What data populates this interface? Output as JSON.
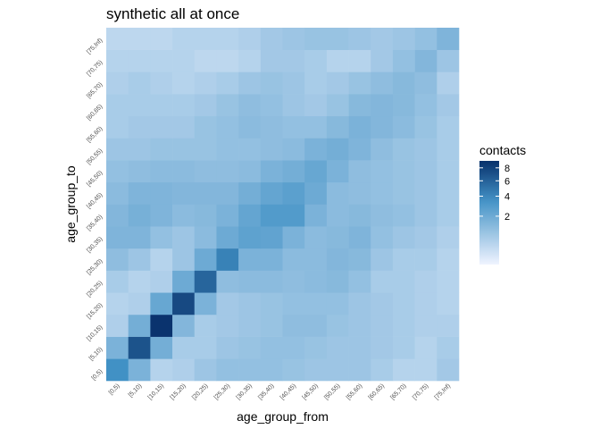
{
  "chart_data": {
    "type": "heatmap",
    "title": "synthetic all at once",
    "xlabel": "age_group_from",
    "ylabel": "age_group_to",
    "x_categories": [
      "[0,5)",
      "[5,10)",
      "[10,15)",
      "[15,20)",
      "[20,25)",
      "[25,30)",
      "[30,35)",
      "[35,40)",
      "[40,45)",
      "[45,50)",
      "[50,55)",
      "[55,60)",
      "[60,65)",
      "[65,70)",
      "[70,75)",
      "[75,Inf)"
    ],
    "y_categories": [
      "[0,5)",
      "[5,10)",
      "[10,15)",
      "[15,20)",
      "[20,25)",
      "[25,30)",
      "[30,35)",
      "[35,40)",
      "[40,45)",
      "[45,50)",
      "[50,55)",
      "[55,60)",
      "[60,65)",
      "[65,70)",
      "[70,75)",
      "[75,Inf)"
    ],
    "values": [
      [
        3.6,
        1.6,
        0.4,
        0.5,
        0.8,
        1.0,
        1.0,
        1.0,
        0.9,
        0.8,
        0.8,
        0.8,
        0.6,
        0.4,
        0.4,
        0.7
      ],
      [
        1.6,
        6.9,
        1.8,
        0.6,
        0.6,
        0.8,
        0.9,
        1.0,
        1.0,
        0.9,
        0.8,
        0.8,
        0.7,
        0.6,
        0.4,
        0.6
      ],
      [
        0.5,
        1.8,
        9.0,
        1.4,
        0.6,
        0.7,
        0.8,
        0.9,
        1.1,
        1.1,
        0.9,
        0.8,
        0.7,
        0.6,
        0.5,
        0.5
      ],
      [
        0.4,
        0.5,
        2.2,
        7.5,
        1.6,
        0.7,
        0.8,
        0.9,
        1.0,
        1.0,
        1.0,
        0.8,
        0.7,
        0.6,
        0.5,
        0.4
      ],
      [
        0.6,
        0.4,
        0.5,
        2.0,
        5.8,
        1.1,
        1.2,
        1.2,
        1.1,
        1.2,
        1.3,
        1.0,
        0.6,
        0.6,
        0.5,
        0.4
      ],
      [
        1.1,
        0.8,
        0.4,
        0.8,
        2.0,
        4.3,
        1.6,
        1.6,
        1.2,
        1.2,
        1.4,
        1.3,
        0.8,
        0.6,
        0.6,
        0.4
      ],
      [
        1.5,
        1.5,
        1.0,
        0.8,
        1.2,
        2.0,
        2.5,
        2.4,
        1.6,
        1.2,
        1.3,
        1.5,
        1.0,
        0.8,
        0.7,
        0.5
      ],
      [
        1.4,
        1.7,
        1.5,
        1.2,
        1.3,
        1.6,
        2.3,
        2.9,
        2.9,
        1.6,
        1.2,
        1.3,
        1.1,
        1.0,
        0.8,
        0.6
      ],
      [
        1.2,
        1.5,
        1.5,
        1.4,
        1.4,
        1.4,
        1.8,
        2.3,
        2.6,
        2.0,
        1.2,
        1.1,
        1.0,
        0.9,
        0.8,
        0.6
      ],
      [
        1.0,
        1.1,
        1.2,
        1.2,
        1.1,
        1.1,
        1.2,
        1.6,
        1.8,
        2.2,
        1.6,
        1.1,
        1.0,
        0.9,
        0.8,
        0.6
      ],
      [
        0.8,
        0.8,
        0.9,
        0.9,
        0.9,
        1.0,
        1.0,
        1.1,
        1.2,
        1.6,
        1.8,
        1.5,
        1.1,
        0.9,
        0.8,
        0.6
      ],
      [
        0.6,
        0.7,
        0.7,
        0.7,
        0.9,
        1.0,
        1.2,
        1.1,
        1.0,
        1.0,
        1.3,
        1.6,
        1.4,
        1.2,
        0.9,
        0.6
      ],
      [
        0.6,
        0.6,
        0.6,
        0.6,
        0.7,
        0.9,
        1.1,
        1.0,
        0.8,
        0.7,
        0.9,
        1.3,
        1.4,
        1.3,
        1.0,
        0.7
      ],
      [
        0.5,
        0.6,
        0.5,
        0.4,
        0.5,
        0.6,
        0.8,
        0.9,
        0.8,
        0.6,
        0.7,
        0.9,
        1.1,
        1.3,
        1.1,
        0.5
      ],
      [
        0.4,
        0.4,
        0.4,
        0.4,
        0.3,
        0.3,
        0.4,
        0.7,
        0.7,
        0.6,
        0.4,
        0.4,
        0.7,
        1.0,
        1.4,
        0.8
      ],
      [
        0.3,
        0.3,
        0.3,
        0.4,
        0.4,
        0.4,
        0.5,
        0.7,
        0.8,
        0.9,
        0.9,
        0.8,
        0.7,
        0.8,
        1.0,
        1.5
      ]
    ],
    "color_scale": {
      "low": "#f0f4ff",
      "high": "#08306b",
      "transform": "sqrt",
      "min": 0,
      "max": 9.2
    },
    "legend": {
      "title": "contacts",
      "ticks": [
        2,
        4,
        6,
        8
      ],
      "placement": "right"
    },
    "grid": false
  }
}
